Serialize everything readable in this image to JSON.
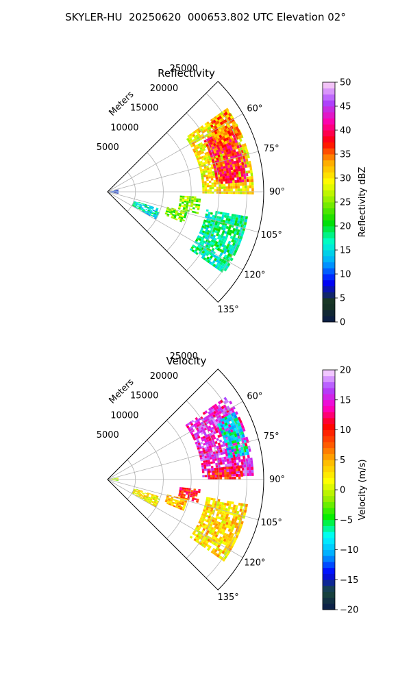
{
  "suptitle": "SKYLER-HU  20250620  000653.802 UTC Elevation 02°",
  "chart_data": [
    {
      "type": "heatmap",
      "projection": "polar-sector",
      "title": "Reflectivity",
      "range_label": "Meters",
      "range_ticks": [
        5000,
        10000,
        15000,
        20000,
        25000
      ],
      "range_tick_labels": [
        "5000",
        "10000",
        "15000",
        "20000",
        "25000"
      ],
      "azimuth_range_deg": [
        45,
        135
      ],
      "azimuth_ticks": [
        "60°",
        "75°",
        "90°",
        "105°",
        "120°",
        "135°"
      ],
      "colorbar": {
        "label": "Reflectivity dBZ",
        "min": 0,
        "max": 50,
        "ticks": [
          "0",
          "5",
          "10",
          "15",
          "20",
          "25",
          "30",
          "35",
          "40",
          "45",
          "50"
        ],
        "colors": [
          "#0a1a4a",
          "#1a3a1a",
          "#0000ff",
          "#00aaff",
          "#00ffcc",
          "#00dd00",
          "#88ee00",
          "#ffff00",
          "#ffaa00",
          "#ff0000",
          "#ff00aa",
          "#aa44ff",
          "#ffd9f5"
        ]
      },
      "echo_regions": [
        {
          "az": [
            55,
            90
          ],
          "r": [
            17000,
            26000
          ],
          "level": 30
        },
        {
          "az": [
            62,
            86
          ],
          "r": [
            19500,
            25000
          ],
          "level": 38
        },
        {
          "az": [
            56,
            68
          ],
          "r": [
            21500,
            26000
          ],
          "level": 34
        },
        {
          "az": [
            93,
            103
          ],
          "r": [
            13000,
            16500
          ],
          "level": 25
        },
        {
          "az": [
            104,
            112
          ],
          "r": [
            11000,
            14500
          ],
          "level": 24
        },
        {
          "az": [
            100,
            125
          ],
          "r": [
            18000,
            25500
          ],
          "level": 18
        },
        {
          "az": [
            108,
            120
          ],
          "r": [
            5000,
            10000
          ],
          "level": 16
        },
        {
          "az": [
            78,
            100
          ],
          "r": [
            300,
            1800
          ],
          "level": 8
        }
      ]
    },
    {
      "type": "heatmap",
      "projection": "polar-sector",
      "title": "Velocity",
      "range_label": "Meters",
      "range_ticks": [
        5000,
        10000,
        15000,
        20000,
        25000
      ],
      "range_tick_labels": [
        "5000",
        "10000",
        "15000",
        "20000",
        "25000"
      ],
      "azimuth_range_deg": [
        45,
        135
      ],
      "azimuth_ticks": [
        "60°",
        "75°",
        "90°",
        "105°",
        "120°",
        "135°"
      ],
      "colorbar": {
        "label": "Velocity (m/s)",
        "min": -20,
        "max": 20,
        "ticks": [
          "−20",
          "−15",
          "−10",
          "−5",
          "0",
          "5",
          "10",
          "15",
          "20"
        ],
        "colors": [
          "#0a1a4a",
          "#1a4a3a",
          "#0000ff",
          "#00aaff",
          "#00ffff",
          "#00ee00",
          "#99ee00",
          "#ffff00",
          "#ffbb00",
          "#ff5500",
          "#ff0000",
          "#ff00cc",
          "#aa44ff",
          "#ffe0ff"
        ]
      },
      "echo_regions": [
        {
          "az": [
            55,
            88
          ],
          "r": [
            17000,
            26000
          ],
          "level": 15
        },
        {
          "az": [
            62,
            80
          ],
          "r": [
            22000,
            25500
          ],
          "level": -8
        },
        {
          "az": [
            84,
            90
          ],
          "r": [
            18000,
            24000
          ],
          "level": 10
        },
        {
          "az": [
            96,
            104
          ],
          "r": [
            13000,
            16500
          ],
          "level": 10
        },
        {
          "az": [
            104,
            112
          ],
          "r": [
            11000,
            14500
          ],
          "level": 4
        },
        {
          "az": [
            100,
            125
          ],
          "r": [
            18000,
            25500
          ],
          "level": 3
        },
        {
          "az": [
            108,
            120
          ],
          "r": [
            5000,
            10000
          ],
          "level": 2
        },
        {
          "az": [
            80,
            98
          ],
          "r": [
            300,
            1800
          ],
          "level": 0
        }
      ]
    }
  ]
}
